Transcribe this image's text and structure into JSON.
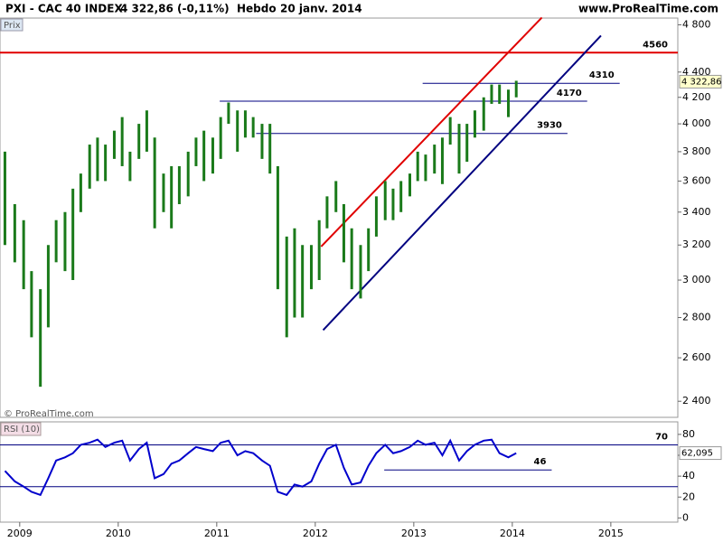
{
  "header": {
    "title": "PXI - CAC 40 INDEX",
    "last": "4 322,86 (-0,11%)",
    "period": "Hebdo",
    "date": "20 janv. 2014",
    "site": "www.ProRealTime.com"
  },
  "chart_data": [
    {
      "type": "range-bar",
      "title": "Prix",
      "credit": "© ProRealTime.com",
      "color": "#1a7a1a",
      "log_scale": true,
      "xlim": [
        2008.8,
        2015.68
      ],
      "ylim": [
        2330,
        4860
      ],
      "yticks": [
        {
          "value": 4800,
          "label": "4 800"
        },
        {
          "value": 4400,
          "label": "4 400"
        },
        {
          "value": 4200,
          "label": "4 200"
        },
        {
          "value": 4000,
          "label": "4 000"
        },
        {
          "value": 3800,
          "label": "3 800"
        },
        {
          "value": 3600,
          "label": "3 600"
        },
        {
          "value": 3400,
          "label": "3 400"
        },
        {
          "value": 3200,
          "label": "3 200"
        },
        {
          "value": 3000,
          "label": "3 000"
        },
        {
          "value": 2800,
          "label": "2 800"
        },
        {
          "value": 2600,
          "label": "2 600"
        },
        {
          "value": 2400,
          "label": "2 400"
        }
      ],
      "x": [
        2008.85,
        2008.95,
        2009.04,
        2009.12,
        2009.21,
        2009.29,
        2009.37,
        2009.46,
        2009.54,
        2009.62,
        2009.71,
        2009.79,
        2009.87,
        2009.96,
        2010.04,
        2010.12,
        2010.21,
        2010.29,
        2010.37,
        2010.46,
        2010.54,
        2010.62,
        2010.71,
        2010.79,
        2010.87,
        2010.96,
        2011.04,
        2011.12,
        2011.21,
        2011.29,
        2011.37,
        2011.46,
        2011.54,
        2011.62,
        2011.71,
        2011.79,
        2011.87,
        2011.96,
        2012.04,
        2012.12,
        2012.21,
        2012.29,
        2012.37,
        2012.46,
        2012.54,
        2012.62,
        2012.71,
        2012.79,
        2012.87,
        2012.96,
        2013.04,
        2013.12,
        2013.21,
        2013.29,
        2013.37,
        2013.46,
        2013.54,
        2013.62,
        2013.71,
        2013.79,
        2013.87,
        2013.96,
        2014.04
      ],
      "high": [
        3800,
        3450,
        3350,
        3050,
        2950,
        3200,
        3350,
        3400,
        3550,
        3650,
        3850,
        3900,
        3850,
        3950,
        4050,
        3800,
        4000,
        4100,
        3900,
        3650,
        3700,
        3700,
        3800,
        3900,
        3950,
        3900,
        4050,
        4160,
        4100,
        4100,
        4050,
        4000,
        4000,
        3700,
        3250,
        3300,
        3200,
        3200,
        3350,
        3500,
        3600,
        3450,
        3300,
        3200,
        3300,
        3500,
        3600,
        3550,
        3600,
        3650,
        3800,
        3780,
        3850,
        3900,
        4050,
        4000,
        4000,
        4100,
        4200,
        4300,
        4300,
        4260,
        4330
      ],
      "low": [
        3200,
        3100,
        2950,
        2700,
        2465,
        2750,
        3100,
        3050,
        3000,
        3400,
        3550,
        3600,
        3600,
        3750,
        3700,
        3600,
        3750,
        3800,
        3300,
        3400,
        3300,
        3450,
        3500,
        3700,
        3600,
        3650,
        3750,
        4000,
        3800,
        3900,
        3900,
        3750,
        3650,
        2950,
        2700,
        2800,
        2800,
        2950,
        3000,
        3300,
        3400,
        3100,
        2950,
        2900,
        3050,
        3250,
        3350,
        3350,
        3400,
        3500,
        3600,
        3600,
        3650,
        3580,
        3850,
        3650,
        3730,
        3900,
        3950,
        4150,
        4150,
        4050,
        4200
      ],
      "last_value": 4322.86,
      "last_label": "4 322,86",
      "levels": [
        {
          "value": 4560,
          "from": 2008.8,
          "to": 2015.68,
          "color": "#e00000"
        },
        {
          "value": 4310,
          "from": 2013.09,
          "to": 2015.09,
          "color": "#000080"
        },
        {
          "value": 4170,
          "from": 2011.03,
          "to": 2014.76,
          "color": "#000080"
        },
        {
          "value": 3930,
          "from": 2011.4,
          "to": 2014.56,
          "color": "#000080"
        }
      ],
      "trendlines": [
        {
          "x": [
            2012.06,
            2014.3
          ],
          "y": [
            3191,
            4865
          ],
          "color": "#e00000"
        },
        {
          "x": [
            2012.08,
            2014.9
          ],
          "y": [
            2736,
            4705
          ],
          "color": "#000080"
        }
      ]
    },
    {
      "type": "line",
      "title": "RSI (10)",
      "color": "#0000cc",
      "xlim": [
        2008.8,
        2015.68
      ],
      "xticks": [
        2009,
        2010,
        2011,
        2012,
        2013,
        2014,
        2015
      ],
      "ylim": [
        -4,
        92
      ],
      "yticks": [
        80,
        60,
        40,
        20,
        0
      ],
      "x": [
        2008.85,
        2008.95,
        2009.04,
        2009.12,
        2009.21,
        2009.29,
        2009.37,
        2009.46,
        2009.54,
        2009.62,
        2009.71,
        2009.79,
        2009.87,
        2009.96,
        2010.04,
        2010.12,
        2010.21,
        2010.29,
        2010.37,
        2010.46,
        2010.54,
        2010.62,
        2010.71,
        2010.79,
        2010.87,
        2010.96,
        2011.04,
        2011.12,
        2011.21,
        2011.29,
        2011.37,
        2011.46,
        2011.54,
        2011.62,
        2011.71,
        2011.79,
        2011.87,
        2011.96,
        2012.04,
        2012.12,
        2012.21,
        2012.29,
        2012.37,
        2012.46,
        2012.54,
        2012.62,
        2012.71,
        2012.79,
        2012.87,
        2012.96,
        2013.04,
        2013.12,
        2013.21,
        2013.29,
        2013.37,
        2013.46,
        2013.54,
        2013.62,
        2013.71,
        2013.79,
        2013.87,
        2013.96,
        2014.04
      ],
      "values": [
        45,
        35,
        30,
        25,
        22,
        38,
        55,
        58,
        62,
        70,
        72,
        75,
        68,
        72,
        74,
        55,
        66,
        72,
        38,
        42,
        52,
        55,
        62,
        68,
        66,
        64,
        72,
        74,
        60,
        64,
        62,
        55,
        50,
        25,
        22,
        32,
        30,
        35,
        52,
        66,
        70,
        48,
        32,
        34,
        50,
        62,
        70,
        62,
        64,
        68,
        74,
        70,
        72,
        60,
        74,
        55,
        64,
        70,
        74,
        75,
        62,
        58,
        62.095
      ],
      "last_value": 62.095,
      "last_label": "62,095",
      "levels": [
        {
          "value": 70,
          "from": 2008.8,
          "to": 2015.68,
          "color": "#000080",
          "show_label": true
        },
        {
          "value": 30,
          "from": 2008.8,
          "to": 2015.68,
          "color": "#000080",
          "show_label": false
        },
        {
          "value": 46,
          "from": 2012.7,
          "to": 2014.4,
          "color": "#000080",
          "show_label": true
        }
      ]
    }
  ]
}
